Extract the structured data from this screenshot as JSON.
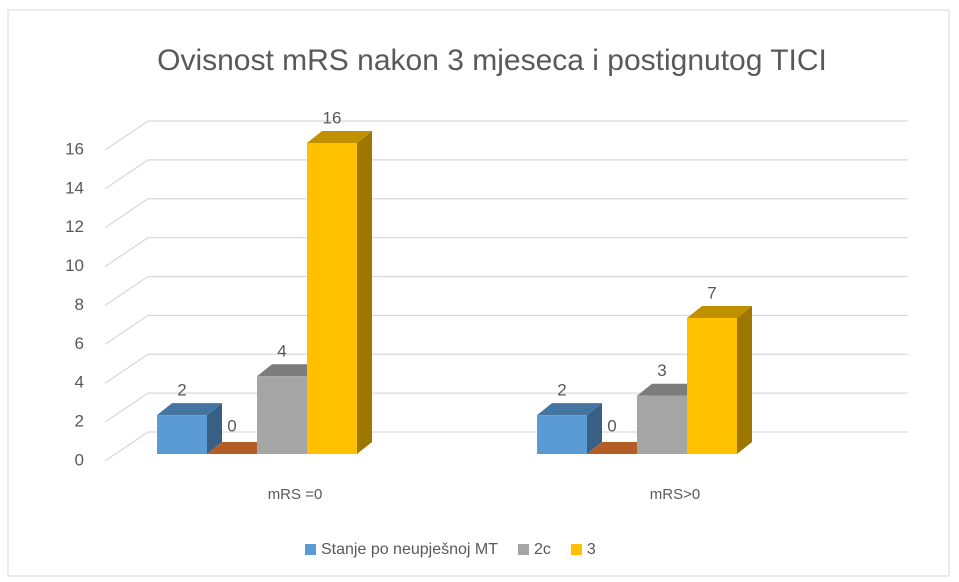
{
  "chart_data": {
    "type": "bar3d",
    "title": "Ovisnost mRS nakon 3 mjeseca i postignutog TICI",
    "categories": [
      "mRS =0",
      "mRS>0"
    ],
    "series": [
      {
        "name": "Stanje po neupješnoj MT",
        "color": "#5b9bd5",
        "values": [
          2,
          2
        ]
      },
      {
        "color": "#ed7d31",
        "values": [
          0,
          0
        ]
      },
      {
        "name": "2c",
        "color": "#a5a5a5",
        "values": [
          4,
          3
        ]
      },
      {
        "name": "3",
        "color": "#ffc000",
        "values": [
          16,
          7
        ]
      }
    ],
    "ylim": [
      0,
      16
    ],
    "yticks": [
      0,
      2,
      4,
      6,
      8,
      10,
      12,
      14,
      16
    ],
    "grid": true,
    "legend": "bottom"
  }
}
